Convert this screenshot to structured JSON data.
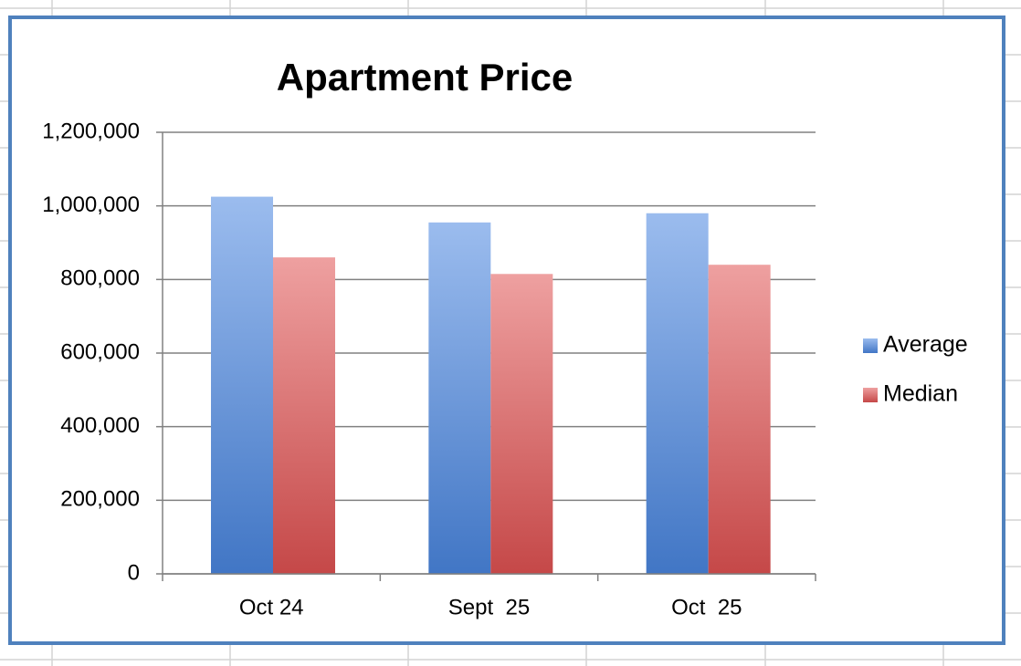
{
  "chart_data": {
    "type": "bar",
    "title": "Apartment Price",
    "categories": [
      "Oct 24",
      "Sept  25",
      "Oct  25"
    ],
    "series": [
      {
        "name": "Average",
        "color": "#4a86e0",
        "values": [
          1025000,
          955000,
          980000
        ]
      },
      {
        "name": "Median",
        "color": "#e05252",
        "values": [
          860000,
          815000,
          840000
        ]
      }
    ],
    "ylim": [
      0,
      1200000
    ],
    "yticks": [
      0,
      {
        "value": 200000,
        "label": "200,000"
      },
      {
        "value": 400000,
        "label": "400,000"
      },
      {
        "value": 600000,
        "label": "600,000"
      },
      {
        "value": 800000,
        "label": "800,000"
      },
      {
        "value": 1000000,
        "label": "1,000,000"
      },
      {
        "value": 1200000,
        "label": "1,200,000"
      }
    ],
    "grid": true,
    "legend": "right"
  }
}
